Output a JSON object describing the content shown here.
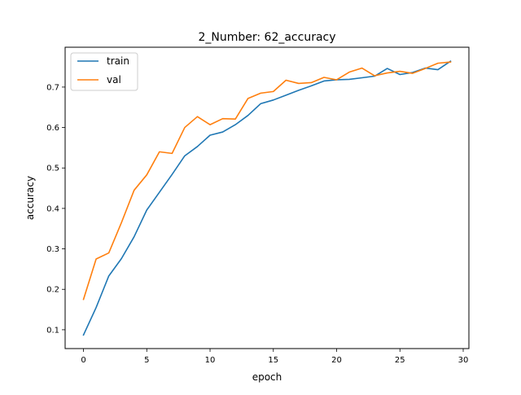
{
  "chart_data": {
    "type": "line",
    "title": "2_Number: 62_accuracy",
    "xlabel": "epoch",
    "ylabel": "accuracy",
    "xlim": [
      -1.45,
      30.45
    ],
    "ylim": [
      0.0535,
      0.7985
    ],
    "xticks": [
      0,
      5,
      10,
      15,
      20,
      25,
      30
    ],
    "xtick_labels": [
      "0",
      "5",
      "10",
      "15",
      "20",
      "25",
      "30"
    ],
    "yticks": [
      0.1,
      0.2,
      0.3,
      0.4,
      0.5,
      0.6,
      0.7
    ],
    "ytick_labels": [
      "0.1",
      "0.2",
      "0.3",
      "0.4",
      "0.5",
      "0.6",
      "0.7"
    ],
    "grid": false,
    "legend_position": "upper-left",
    "x": [
      0,
      1,
      2,
      3,
      4,
      5,
      6,
      7,
      8,
      9,
      10,
      11,
      12,
      13,
      14,
      15,
      16,
      17,
      18,
      19,
      20,
      21,
      22,
      23,
      24,
      25,
      26,
      27,
      28,
      29
    ],
    "series": [
      {
        "name": "train",
        "color": "#1f77b4",
        "values": [
          0.087,
          0.155,
          0.233,
          0.276,
          0.33,
          0.396,
          0.44,
          0.484,
          0.53,
          0.553,
          0.581,
          0.589,
          0.607,
          0.63,
          0.659,
          0.668,
          0.68,
          0.692,
          0.703,
          0.715,
          0.718,
          0.719,
          0.723,
          0.727,
          0.746,
          0.731,
          0.736,
          0.747,
          0.743,
          0.764
        ]
      },
      {
        "name": "val",
        "color": "#ff7f0e",
        "values": [
          0.175,
          0.275,
          0.29,
          0.365,
          0.445,
          0.483,
          0.54,
          0.536,
          0.6,
          0.627,
          0.607,
          0.622,
          0.621,
          0.672,
          0.685,
          0.689,
          0.717,
          0.709,
          0.711,
          0.724,
          0.718,
          0.737,
          0.747,
          0.728,
          0.735,
          0.739,
          0.734,
          0.746,
          0.759,
          0.762
        ]
      }
    ]
  }
}
